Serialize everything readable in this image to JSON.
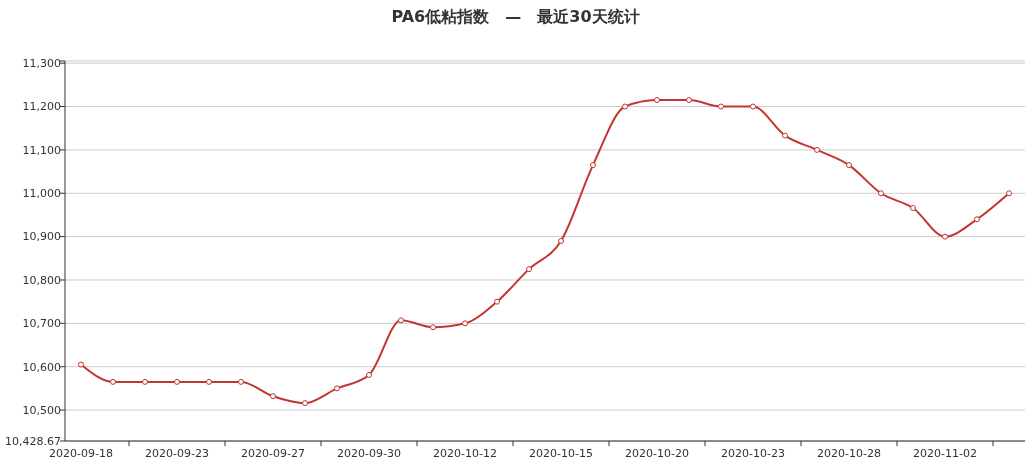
{
  "chart_data": {
    "type": "line",
    "title": "PA6低粘指数　—　最近30天统计",
    "categories": [
      "2020-09-18",
      null,
      null,
      "2020-09-23",
      null,
      null,
      "2020-09-27",
      null,
      null,
      "2020-09-30",
      null,
      null,
      "2020-10-12",
      null,
      null,
      "2020-10-15",
      null,
      null,
      "2020-10-20",
      null,
      null,
      "2020-10-23",
      null,
      null,
      "2020-10-28",
      null,
      null,
      "2020-11-02",
      null,
      null
    ],
    "series": [
      {
        "color": "#c23531",
        "values": [
          10605,
          10565,
          10565,
          10565,
          10565,
          10565,
          10532,
          10516,
          10550,
          10581,
          10707,
          10691,
          10700,
          10750,
          10825,
          10890,
          11065,
          11200,
          11215,
          11215,
          11200,
          11200,
          11133,
          11100,
          11065,
          11000,
          10966,
          10900,
          10940,
          11000
        ]
      }
    ],
    "ylim": [
      10428.67,
      11305
    ],
    "yticks": [
      {
        "value": 10428.67,
        "label": "10,428.67"
      },
      {
        "value": 10500,
        "label": "10,500"
      },
      {
        "value": 10600,
        "label": "10,600"
      },
      {
        "value": 10700,
        "label": "10,700"
      },
      {
        "value": 10800,
        "label": "10,800"
      },
      {
        "value": 10900,
        "label": "10,900"
      },
      {
        "value": 11000,
        "label": "11,000"
      },
      {
        "value": 11100,
        "label": "11,100"
      },
      {
        "value": 11200,
        "label": "11,200"
      },
      {
        "value": 11300,
        "label": "11,300"
      },
      {
        "value": 11305,
        "label": null
      }
    ],
    "grid": true,
    "marker": "circle",
    "line_style": "solid"
  }
}
